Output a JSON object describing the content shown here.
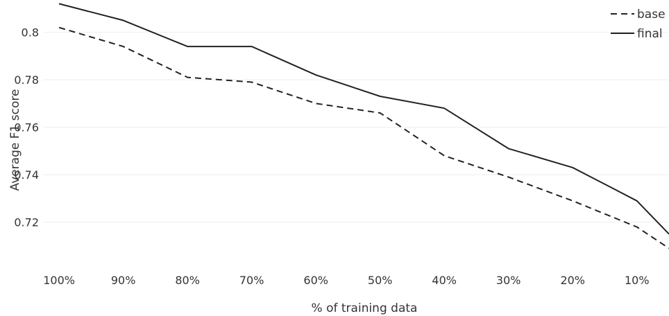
{
  "chart_data": {
    "type": "line",
    "title": "",
    "xlabel": "% of training data",
    "ylabel": "Average F1 score",
    "categories": [
      "100%",
      "90%",
      "80%",
      "70%",
      "60%",
      "50%",
      "40%",
      "30%",
      "20%",
      "10%"
    ],
    "x": [
      100,
      90,
      80,
      70,
      60,
      50,
      40,
      30,
      20,
      10,
      5
    ],
    "xlim": [
      102.5,
      5
    ],
    "ylim": [
      0.705,
      0.813
    ],
    "yticks": [
      0.72,
      0.74,
      0.76,
      0.78,
      0.8
    ],
    "ytick_labels": [
      "0.72",
      "0.74",
      "0.76",
      "0.78",
      "0.8"
    ],
    "grid": true,
    "legend_position": "top-right",
    "series": [
      {
        "name": "base",
        "dash": "dashed",
        "color": "#222222",
        "values": [
          0.802,
          0.794,
          0.781,
          0.779,
          0.77,
          0.766,
          0.748,
          0.739,
          0.729,
          0.718,
          0.709
        ]
      },
      {
        "name": "final",
        "dash": "solid",
        "color": "#222222",
        "values": [
          0.812,
          0.805,
          0.794,
          0.794,
          0.782,
          0.773,
          0.768,
          0.751,
          0.743,
          0.729,
          0.715
        ]
      }
    ]
  }
}
